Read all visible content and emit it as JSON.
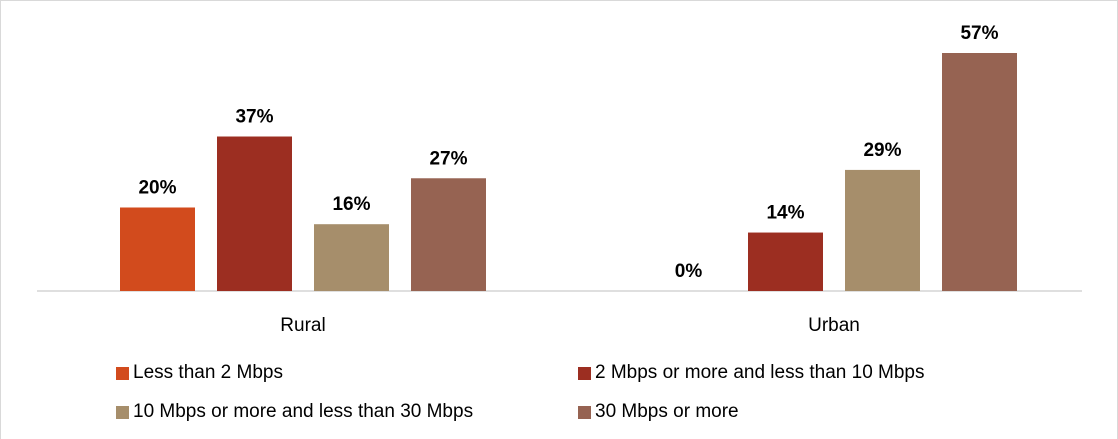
{
  "chart_data": {
    "type": "bar",
    "categories": [
      "Rural",
      "Urban"
    ],
    "series": [
      {
        "name": "Less than 2 Mbps",
        "values": [
          20,
          0
        ],
        "labels": [
          "20%",
          "0%"
        ],
        "color": "#d24b1d"
      },
      {
        "name": "2 Mbps or more and less than 10 Mbps",
        "values": [
          37,
          14
        ],
        "labels": [
          "37%",
          "14%"
        ],
        "color": "#9c2e21"
      },
      {
        "name": "10 Mbps or more and less than 30 Mbps",
        "values": [
          16,
          29
        ],
        "labels": [
          "16%",
          "29%"
        ],
        "color": "#a68e6b"
      },
      {
        "name": "30 Mbps or more",
        "values": [
          27,
          57
        ],
        "labels": [
          "27%",
          "57%"
        ],
        "color": "#966352"
      }
    ],
    "ylim": [
      0,
      57
    ],
    "grid": false,
    "legend_position": "bottom",
    "title": "",
    "xlabel": "",
    "ylabel": ""
  }
}
